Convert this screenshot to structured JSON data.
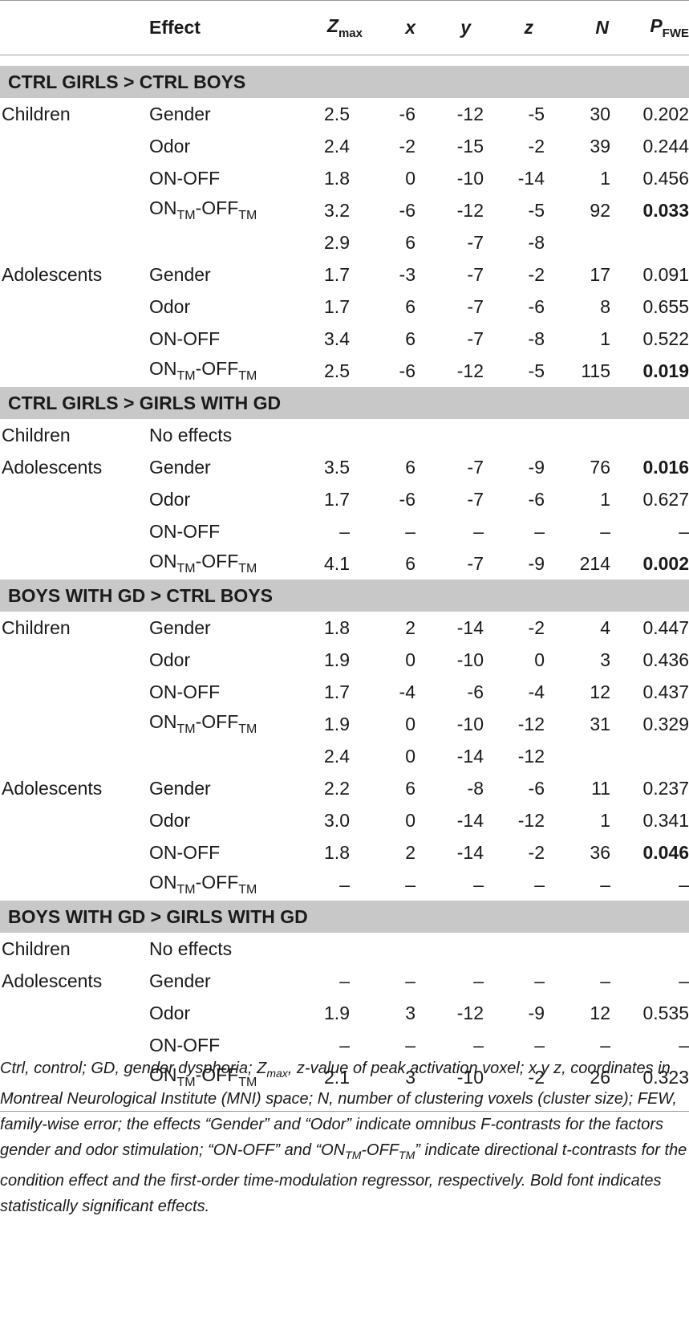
{
  "header": {
    "effect": "Effect",
    "z": "Z",
    "z_sub": "max",
    "x": "x",
    "y": "y",
    "zc": "z",
    "n": "N",
    "p": "P",
    "p_sub": "FWE"
  },
  "sections": [
    {
      "title": "CTRL GIRLS > CTRL BOYS",
      "rows": [
        {
          "group": "Children",
          "effect": "Gender",
          "z": "2.5",
          "x": "-6",
          "y": "-12",
          "zc": "-5",
          "n": "30",
          "p": "0.202"
        },
        {
          "group": "",
          "effect": "Odor",
          "z": "2.4",
          "x": "-2",
          "y": "-15",
          "zc": "-2",
          "n": "39",
          "p": "0.244"
        },
        {
          "group": "",
          "effect": "ON-OFF",
          "z": "1.8",
          "x": "0",
          "y": "-10",
          "zc": "-14",
          "n": "1",
          "p": "0.456"
        },
        {
          "group": "",
          "effect": "ONTM-OFFTM",
          "z": "3.2",
          "x": "-6",
          "y": "-12",
          "zc": "-5",
          "n": "92",
          "p": "0.033",
          "bold": true
        },
        {
          "group": "",
          "effect": "",
          "z": "2.9",
          "x": "6",
          "y": "-7",
          "zc": "-8",
          "n": "",
          "p": ""
        },
        {
          "group": "Adolescents",
          "effect": "Gender",
          "z": "1.7",
          "x": "-3",
          "y": "-7",
          "zc": "-2",
          "n": "17",
          "p": "0.091"
        },
        {
          "group": "",
          "effect": "Odor",
          "z": "1.7",
          "x": "6",
          "y": "-7",
          "zc": "-6",
          "n": "8",
          "p": "0.655"
        },
        {
          "group": "",
          "effect": "ON-OFF",
          "z": "3.4",
          "x": "6",
          "y": "-7",
          "zc": "-8",
          "n": "1",
          "p": "0.522"
        },
        {
          "group": "",
          "effect": "ONTM-OFFTM",
          "z": "2.5",
          "x": "-6",
          "y": "-12",
          "zc": "-5",
          "n": "115",
          "p": "0.019",
          "bold": true
        }
      ]
    },
    {
      "title": "CTRL GIRLS > GIRLS WITH GD",
      "rows": [
        {
          "group": "Children",
          "effect": "No effects",
          "z": "",
          "x": "",
          "y": "",
          "zc": "",
          "n": "",
          "p": ""
        },
        {
          "group": "Adolescents",
          "effect": "Gender",
          "z": "3.5",
          "x": "6",
          "y": "-7",
          "zc": "-9",
          "n": "76",
          "p": "0.016",
          "bold": true
        },
        {
          "group": "",
          "effect": "Odor",
          "z": "1.7",
          "x": "-6",
          "y": "-7",
          "zc": "-6",
          "n": "1",
          "p": "0.627"
        },
        {
          "group": "",
          "effect": "ON-OFF",
          "z": "–",
          "x": "–",
          "y": "–",
          "zc": "–",
          "n": "–",
          "p": "–"
        },
        {
          "group": "",
          "effect": "ONTM-OFFTM",
          "z": "4.1",
          "x": "6",
          "y": "-7",
          "zc": "-9",
          "n": "214",
          "p": "0.002",
          "bold": true
        }
      ]
    },
    {
      "title": "BOYS WITH GD > CTRL BOYS",
      "rows": [
        {
          "group": "Children",
          "effect": "Gender",
          "z": "1.8",
          "x": "2",
          "y": "-14",
          "zc": "-2",
          "n": "4",
          "p": "0.447"
        },
        {
          "group": "",
          "effect": "Odor",
          "z": "1.9",
          "x": "0",
          "y": "-10",
          "zc": "0",
          "n": "3",
          "p": "0.436"
        },
        {
          "group": "",
          "effect": "ON-OFF",
          "z": "1.7",
          "x": "-4",
          "y": "-6",
          "zc": "-4",
          "n": "12",
          "p": "0.437"
        },
        {
          "group": "",
          "effect": "ONTM-OFFTM",
          "z": "1.9",
          "x": "0",
          "y": "-10",
          "zc": "-12",
          "n": "31",
          "p": "0.329"
        },
        {
          "group": "",
          "effect": "",
          "z": "2.4",
          "x": "0",
          "y": "-14",
          "zc": "-12",
          "n": "",
          "p": ""
        },
        {
          "group": "Adolescents",
          "effect": "Gender",
          "z": "2.2",
          "x": "6",
          "y": "-8",
          "zc": "-6",
          "n": "11",
          "p": "0.237"
        },
        {
          "group": "",
          "effect": "Odor",
          "z": "3.0",
          "x": "0",
          "y": "-14",
          "zc": "-12",
          "n": "1",
          "p": "0.341"
        },
        {
          "group": "",
          "effect": "ON-OFF",
          "z": "1.8",
          "x": "2",
          "y": "-14",
          "zc": "-2",
          "n": "36",
          "p": "0.046",
          "bold": true
        },
        {
          "group": "",
          "effect": "ONTM-OFFTM",
          "z": "–",
          "x": "–",
          "y": "–",
          "zc": "–",
          "n": "–",
          "p": "–"
        }
      ]
    },
    {
      "title": "BOYS WITH GD > GIRLS WITH GD",
      "rows": [
        {
          "group": "Children",
          "effect": "No effects",
          "z": "",
          "x": "",
          "y": "",
          "zc": "",
          "n": "",
          "p": ""
        },
        {
          "group": "Adolescents",
          "effect": "Gender",
          "z": "–",
          "x": "–",
          "y": "–",
          "zc": "–",
          "n": "–",
          "p": "–"
        },
        {
          "group": "",
          "effect": "Odor",
          "z": "1.9",
          "x": "3",
          "y": "-12",
          "zc": "-9",
          "n": "12",
          "p": "0.535"
        },
        {
          "group": "",
          "effect": "ON-OFF",
          "z": "–",
          "x": "–",
          "y": "–",
          "zc": "–",
          "n": "–",
          "p": "–"
        },
        {
          "group": "",
          "effect": "ONTM-OFFTM",
          "z": "2.1",
          "x": "3",
          "y": "-10",
          "zc": "-2",
          "n": "26",
          "p": "0.323"
        }
      ]
    }
  ],
  "footnote": "Ctrl, control; GD, gender dysphoria; Zmax, z-value of peak activation voxel; x y z, coordinates in Montreal Neurological Institute (MNI) space; N, number of clustering voxels (cluster size); FEW, family-wise error; the effects “Gender” and “Odor” indicate omnibus F-contrasts for the factors gender and odor stimulation; “ON-OFF” and “ONTM-OFFTM” indicate directional t-contrasts for the condition effect and the first-order time-modulation regressor, respectively. Bold font indicates statistically significant effects."
}
